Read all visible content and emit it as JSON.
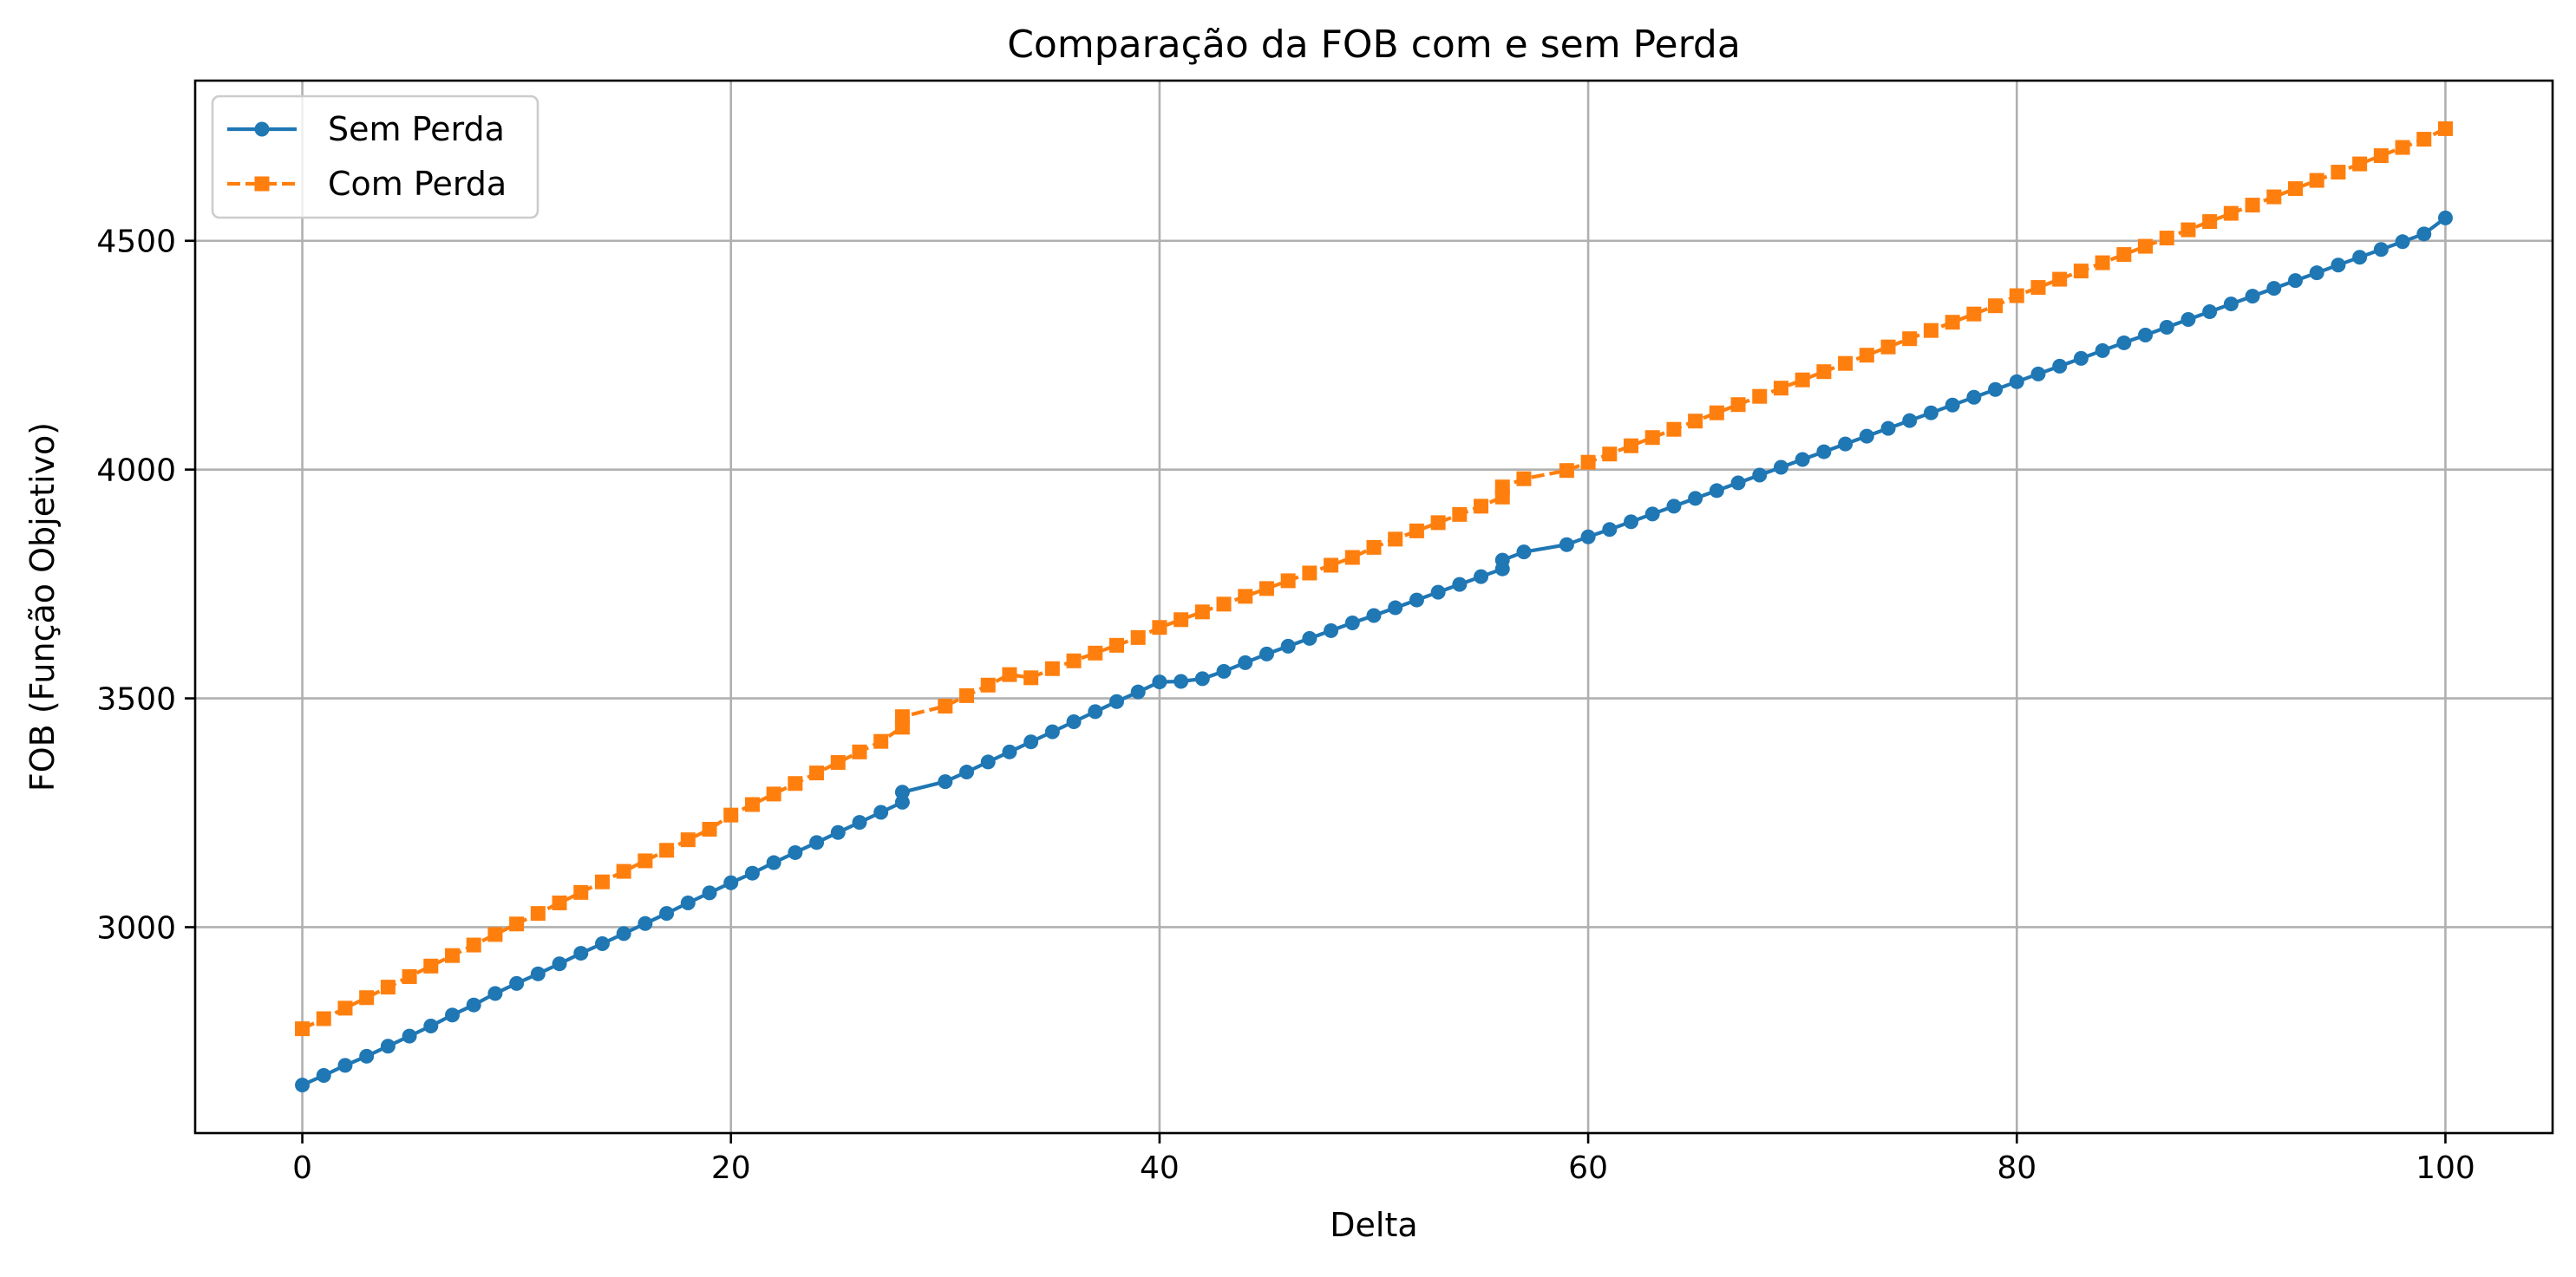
{
  "chart_data": {
    "type": "line",
    "title": "Comparação da FOB com e sem Perda",
    "xlabel": "Delta",
    "ylabel": "FOB (Função Objetivo)",
    "xlim": [
      -5,
      105
    ],
    "ylim": [
      2550,
      4850
    ],
    "xticks": [
      0,
      20,
      40,
      60,
      80,
      100
    ],
    "yticks": [
      3000,
      3500,
      4000,
      4500
    ],
    "grid": true,
    "legend_position": "top-left",
    "series": [
      {
        "name": "Sem Perda",
        "color": "#1f77b4",
        "marker": "circle",
        "linestyle": "solid",
        "x": [
          0,
          1,
          2,
          3,
          4,
          5,
          6,
          7,
          8,
          9,
          10,
          11,
          12,
          13,
          14,
          15,
          16,
          17,
          18,
          19,
          20,
          21,
          22,
          23,
          24,
          25,
          26,
          27,
          28,
          28,
          30,
          31,
          32,
          33,
          34,
          35,
          36,
          37,
          38,
          39,
          40,
          41,
          42,
          43,
          44,
          45,
          46,
          47,
          48,
          49,
          50,
          51,
          52,
          53,
          54,
          55,
          56,
          56,
          57,
          59,
          60,
          61,
          62,
          63,
          64,
          65,
          66,
          67,
          68,
          69,
          70,
          71,
          72,
          73,
          74,
          75,
          76,
          77,
          78,
          79,
          80,
          81,
          82,
          83,
          84,
          85,
          86,
          87,
          88,
          89,
          90,
          91,
          92,
          93,
          94,
          95,
          96,
          97,
          98,
          99,
          100
        ],
        "y": [
          2655,
          2676,
          2698,
          2718,
          2740,
          2762,
          2784,
          2808,
          2830,
          2855,
          2877,
          2898,
          2920,
          2943,
          2964,
          2986,
          3008,
          3030,
          3053,
          3075,
          3097,
          3118,
          3141,
          3163,
          3185,
          3207,
          3229,
          3251,
          3273,
          3295,
          3318,
          3339,
          3361,
          3383,
          3405,
          3427,
          3449,
          3471,
          3493,
          3514,
          3536,
          3537,
          3543,
          3559,
          3578,
          3597,
          3614,
          3631,
          3648,
          3665,
          3681,
          3698,
          3715,
          3732,
          3749,
          3766,
          3783,
          3802,
          3820,
          3836,
          3853,
          3869,
          3886,
          3903,
          3920,
          3937,
          3954,
          3971,
          3988,
          4005,
          4022,
          4039,
          4056,
          4073,
          4090,
          4107,
          4124,
          4141,
          4158,
          4175,
          4192,
          4209,
          4226,
          4243,
          4260,
          4277,
          4294,
          4311,
          4328,
          4345,
          4362,
          4379,
          4396,
          4413,
          4430,
          4447,
          4464,
          4481,
          4498,
          4515,
          4550
        ]
      },
      {
        "name": "Com Perda",
        "color": "#ff7f0e",
        "marker": "square",
        "linestyle": "dashed",
        "x": [
          0,
          1,
          2,
          3,
          4,
          5,
          6,
          7,
          8,
          9,
          10,
          11,
          12,
          13,
          14,
          15,
          16,
          17,
          18,
          19,
          20,
          21,
          22,
          23,
          24,
          25,
          26,
          27,
          28,
          28,
          30,
          31,
          32,
          33,
          34,
          35,
          36,
          37,
          38,
          39,
          40,
          41,
          42,
          43,
          44,
          45,
          46,
          47,
          48,
          49,
          50,
          51,
          52,
          53,
          54,
          55,
          56,
          56,
          57,
          59,
          60,
          61,
          62,
          63,
          64,
          65,
          66,
          67,
          68,
          69,
          70,
          71,
          72,
          73,
          74,
          75,
          76,
          77,
          78,
          79,
          80,
          81,
          82,
          83,
          84,
          85,
          86,
          87,
          88,
          89,
          90,
          91,
          92,
          93,
          94,
          95,
          96,
          97,
          98,
          99,
          100
        ],
        "y": [
          2778,
          2800,
          2823,
          2846,
          2869,
          2892,
          2915,
          2938,
          2961,
          2984,
          3007,
          3030,
          3053,
          3076,
          3099,
          3122,
          3145,
          3168,
          3191,
          3214,
          3245,
          3268,
          3291,
          3314,
          3337,
          3360,
          3383,
          3406,
          3437,
          3460,
          3483,
          3506,
          3529,
          3552,
          3545,
          3565,
          3582,
          3599,
          3616,
          3633,
          3655,
          3672,
          3689,
          3706,
          3723,
          3740,
          3757,
          3774,
          3791,
          3808,
          3830,
          3848,
          3866,
          3884,
          3902,
          3920,
          3940,
          3962,
          3980,
          3998,
          4016,
          4034,
          4052,
          4070,
          4088,
          4106,
          4124,
          4142,
          4160,
          4178,
          4196,
          4214,
          4232,
          4250,
          4268,
          4286,
          4304,
          4322,
          4340,
          4358,
          4380,
          4398,
          4416,
          4434,
          4452,
          4470,
          4488,
          4506,
          4524,
          4542,
          4560,
          4578,
          4596,
          4614,
          4632,
          4650,
          4668,
          4686,
          4704,
          4722,
          4745
        ]
      }
    ]
  }
}
